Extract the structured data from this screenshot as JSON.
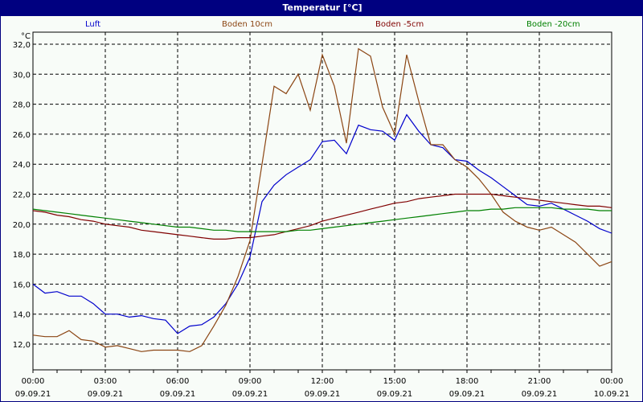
{
  "window": {
    "title": "Temperatur [°C]"
  },
  "chart_data": {
    "type": "line",
    "title": "Temperatur [°C]",
    "ylabel": "°C",
    "xlabel": "",
    "ylim": [
      11.0,
      32.8
    ],
    "yticks": [
      "12,0",
      "14,0",
      "16,0",
      "18,0",
      "20,0",
      "22,0",
      "24,0",
      "26,0",
      "28,0",
      "30,0",
      "32,0"
    ],
    "xticks": [
      {
        "time": "00:00",
        "date": "09.09.21"
      },
      {
        "time": "03:00",
        "date": "09.09.21"
      },
      {
        "time": "06:00",
        "date": "09.09.21"
      },
      {
        "time": "09:00",
        "date": "09.09.21"
      },
      {
        "time": "12:00",
        "date": "09.09.21"
      },
      {
        "time": "15:00",
        "date": "09.09.21"
      },
      {
        "time": "18:00",
        "date": "09.09.21"
      },
      {
        "time": "21:00",
        "date": "09.09.21"
      },
      {
        "time": "00:00",
        "date": "10.09.21"
      }
    ],
    "grid": true,
    "legend_position": "top",
    "x_hours": [
      0,
      0.5,
      1,
      1.5,
      2,
      2.5,
      3,
      3.5,
      4,
      4.5,
      5,
      5.5,
      6,
      6.5,
      7,
      7.5,
      8,
      8.5,
      9,
      9.5,
      10,
      10.5,
      11,
      11.5,
      12,
      12.5,
      13,
      13.5,
      14,
      14.5,
      15,
      15.5,
      16,
      16.5,
      17,
      17.5,
      18,
      18.5,
      19,
      19.5,
      20,
      20.5,
      21,
      21.5,
      22,
      22.5,
      23,
      23.5,
      24
    ],
    "series": [
      {
        "name": "Luft",
        "color": "#0000cc",
        "values": [
          16.0,
          15.4,
          15.5,
          15.2,
          15.2,
          14.7,
          14.0,
          14.0,
          13.8,
          13.9,
          13.7,
          13.6,
          12.7,
          13.2,
          13.3,
          13.8,
          14.7,
          16.0,
          17.8,
          21.5,
          22.6,
          23.3,
          23.8,
          24.3,
          25.5,
          25.6,
          24.7,
          26.6,
          26.3,
          26.2,
          25.6,
          27.3,
          26.2,
          25.3,
          25.1,
          24.3,
          24.2,
          23.6,
          23.1,
          22.5,
          21.9,
          21.3,
          21.2,
          21.4,
          21.0,
          20.6,
          20.2,
          19.7,
          19.4
        ]
      },
      {
        "name": "Boden 10cm",
        "color": "#8b4513",
        "values": [
          12.6,
          12.5,
          12.5,
          12.9,
          12.3,
          12.2,
          11.8,
          11.9,
          11.7,
          11.5,
          11.6,
          11.6,
          11.6,
          11.5,
          11.9,
          13.2,
          14.6,
          16.5,
          18.9,
          24.0,
          29.2,
          28.7,
          30.0,
          27.6,
          31.3,
          29.2,
          25.4,
          31.7,
          31.2,
          27.8,
          26.0,
          31.3,
          28.2,
          25.3,
          25.3,
          24.3,
          23.8,
          23.0,
          22.0,
          20.8,
          20.2,
          19.8,
          19.6,
          19.8,
          19.3,
          18.8,
          18.0,
          17.2,
          17.5
        ]
      },
      {
        "name": "Boden -5cm",
        "color": "#800000",
        "values": [
          20.9,
          20.8,
          20.6,
          20.5,
          20.3,
          20.2,
          20.0,
          19.9,
          19.8,
          19.6,
          19.5,
          19.4,
          19.3,
          19.2,
          19.1,
          19.0,
          19.0,
          19.1,
          19.1,
          19.2,
          19.3,
          19.5,
          19.7,
          19.9,
          20.2,
          20.4,
          20.6,
          20.8,
          21.0,
          21.2,
          21.4,
          21.5,
          21.7,
          21.8,
          21.9,
          22.0,
          22.0,
          22.0,
          22.0,
          21.9,
          21.8,
          21.7,
          21.6,
          21.5,
          21.4,
          21.3,
          21.2,
          21.2,
          21.1
        ]
      },
      {
        "name": "Boden -20cm",
        "color": "#008000",
        "values": [
          21.0,
          20.9,
          20.8,
          20.7,
          20.6,
          20.5,
          20.4,
          20.3,
          20.2,
          20.1,
          20.0,
          19.9,
          19.8,
          19.8,
          19.7,
          19.6,
          19.6,
          19.5,
          19.5,
          19.5,
          19.5,
          19.5,
          19.6,
          19.6,
          19.7,
          19.8,
          19.9,
          20.0,
          20.1,
          20.2,
          20.3,
          20.4,
          20.5,
          20.6,
          20.7,
          20.8,
          20.9,
          20.9,
          21.0,
          21.0,
          21.1,
          21.1,
          21.1,
          21.1,
          21.0,
          21.0,
          21.0,
          20.9,
          20.9
        ]
      }
    ]
  }
}
